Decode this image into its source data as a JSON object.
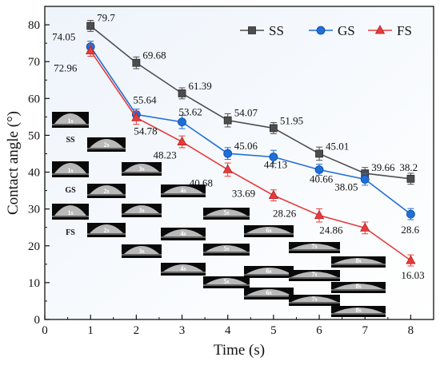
{
  "chart_data": {
    "type": "line",
    "xlabel": "Time (s)",
    "ylabel": "Contact angle (°)",
    "xlim": [
      0,
      8.5
    ],
    "ylim": [
      0,
      85
    ],
    "xticks": [
      0,
      1,
      2,
      3,
      4,
      5,
      6,
      7,
      8
    ],
    "yticks": [
      0,
      10,
      20,
      30,
      40,
      50,
      60,
      70,
      80
    ],
    "grid": false,
    "legend_position": "top-right",
    "x": [
      1,
      2,
      3,
      4,
      5,
      6,
      7,
      8
    ],
    "series": [
      {
        "name": "SS",
        "color": "#4d4d4d",
        "marker": "square",
        "values": [
          79.7,
          69.68,
          61.39,
          54.07,
          51.95,
          45.01,
          39.66,
          38.2
        ],
        "errors": [
          1.5,
          1.6,
          1.5,
          1.8,
          1.5,
          1.8,
          1.6,
          1.5
        ],
        "labels": [
          "79.7",
          "69.68",
          "61.39",
          "54.07",
          "51.95",
          "45.01",
          "39.66",
          "38.2"
        ]
      },
      {
        "name": "GS",
        "color": "#1f6fd8",
        "marker": "circle",
        "values": [
          74.05,
          55.64,
          53.62,
          45.06,
          44.13,
          40.66,
          38.05,
          28.6
        ],
        "errors": [
          1.5,
          1.5,
          1.8,
          1.6,
          1.8,
          1.5,
          1.6,
          1.5
        ],
        "labels": [
          "74.05",
          "55.64",
          "53.62",
          "45.06",
          "44.13",
          "40.66",
          "38.05",
          "28.6"
        ]
      },
      {
        "name": "FS",
        "color": "#e83b3b",
        "marker": "triangle",
        "values": [
          72.96,
          54.78,
          48.23,
          40.68,
          33.69,
          28.26,
          24.86,
          16.03
        ],
        "errors": [
          1.5,
          1.8,
          1.6,
          1.8,
          1.5,
          1.8,
          1.6,
          1.5
        ],
        "labels": [
          "72.96",
          "54.78",
          "48.23",
          "40.68",
          "33.69",
          "28.26",
          "24.86",
          "16.03"
        ]
      }
    ],
    "row_labels": [
      "SS",
      "GS",
      "FS"
    ],
    "droplet_images": {
      "SS": [
        "1s",
        "2s",
        "3s",
        "4s",
        "5s",
        "6s",
        "7s",
        "8s"
      ],
      "GS": [
        "1s",
        "2s",
        "3s",
        "4s",
        "5s",
        "6s",
        "7s",
        "8s"
      ],
      "FS": [
        "1s",
        "2s",
        "3s",
        "4s",
        "5s",
        "6s",
        "7s",
        "8s"
      ]
    }
  }
}
